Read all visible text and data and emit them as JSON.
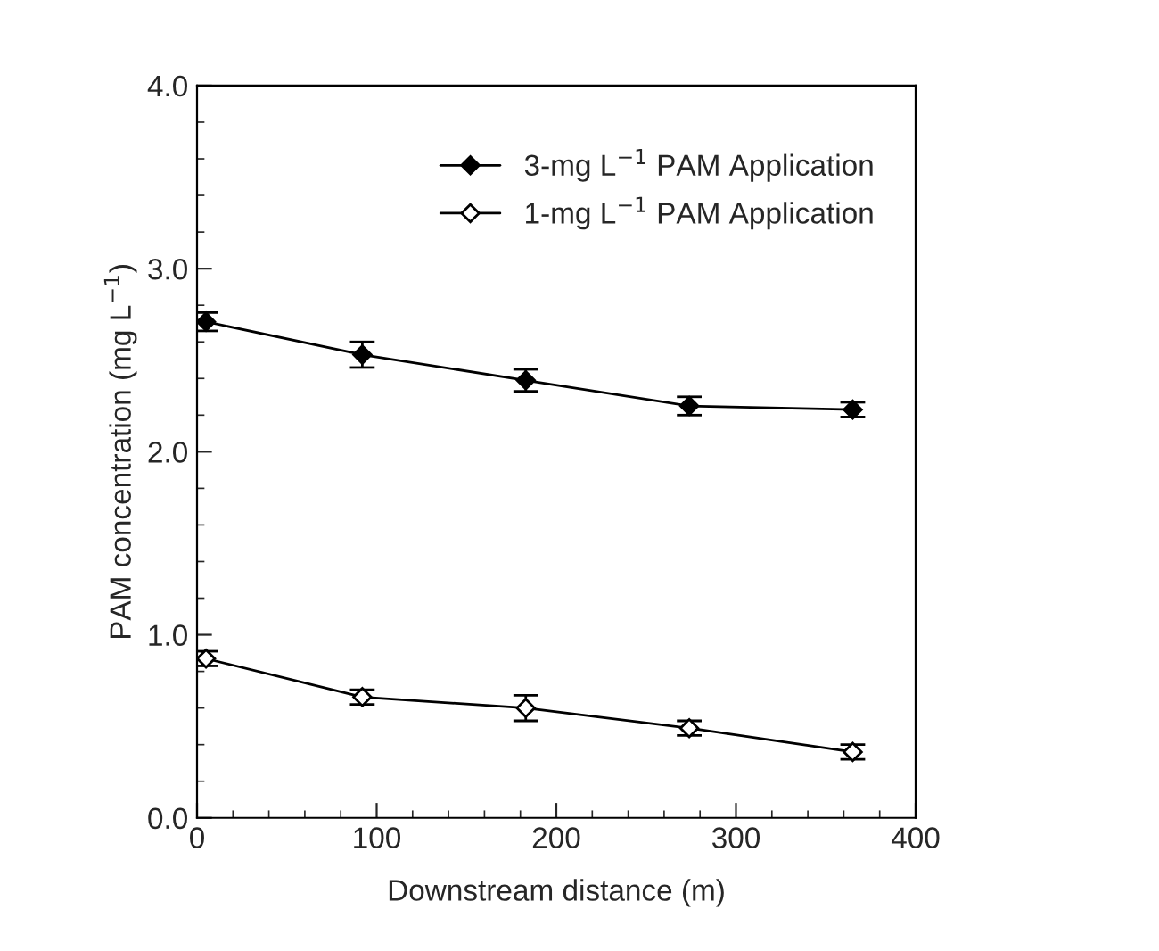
{
  "chart_data": {
    "type": "line",
    "xlabel": "Downstream distance (m)",
    "ylabel": "PAM concentration (mg L$^{−1}$)",
    "x": [
      5,
      92,
      183,
      274,
      365
    ],
    "series": [
      {
        "name": "3-mg L$^{−1}$ PAM Application",
        "color": "#000000",
        "values": [
          2.71,
          2.53,
          2.39,
          2.25,
          2.23
        ],
        "errors": [
          0.05,
          0.07,
          0.06,
          0.05,
          0.04
        ]
      },
      {
        "name": "1-mg L$^{−1}$ PAM Application",
        "color": "#000000",
        "values": [
          0.87,
          0.66,
          0.6,
          0.49,
          0.36
        ],
        "errors": [
          0.04,
          0.04,
          0.07,
          0.04,
          0.04
        ]
      }
    ],
    "xlim": [
      0,
      400
    ],
    "xticks": [
      0,
      100,
      200,
      300,
      400
    ],
    "ylim": [
      0,
      4
    ],
    "yticks": [
      {
        "value": 0,
        "label": "0.0"
      },
      {
        "value": 1,
        "label": "1.0"
      },
      {
        "value": 2,
        "label": "2.0"
      },
      {
        "value": 3,
        "label": "3.0"
      },
      {
        "value": 4,
        "label": "4.0"
      }
    ],
    "marker": "diamond",
    "line_style": "solid",
    "legend": "top right",
    "grid": false
  }
}
